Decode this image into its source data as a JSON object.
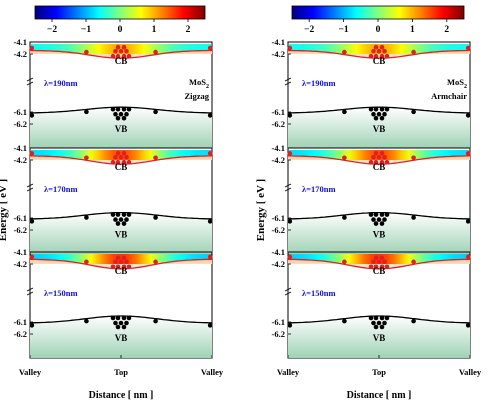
{
  "colors": {
    "cb_curve": "#e02020",
    "vb_curve": "#000000",
    "cb_dots": "#e02020",
    "vb_dots": "#000000",
    "cb_fill_top": "#f2c79a",
    "cb_fill_bottom": "#fff6e8",
    "vb_fill_top": "#ffffff",
    "vb_fill_bottom": "#9fd2b5",
    "lambda_text": "#1010e0",
    "colormap": "jet"
  },
  "chart_data": [
    {
      "type": "line",
      "name_label": "MoS₂ Zigzag",
      "note_lines": [
        "MoS",
        "2",
        "Zigzag"
      ],
      "xlabel": "Distance [ nm ]",
      "ylabel": "Energy [ eV ]",
      "x_tick_labels": [
        "Valley",
        "Top",
        "Valley"
      ],
      "colorbar": {
        "ticks": [
          -2,
          -1,
          0,
          1,
          2
        ],
        "range": [
          -2.5,
          2.5
        ],
        "colormap": "jet"
      },
      "panels": [
        {
          "lambda": "λ=190nm",
          "cb_label": "CB",
          "vb_label": "VB",
          "strip_center": 0.0,
          "strip_amplitude": 1.6,
          "cb_curve": {
            "edge": -4.17,
            "dip": -4.235
          },
          "vb_curve": {
            "edge": -6.11,
            "peak": -6.06
          },
          "yticks": [
            "-4.1",
            "-4.2",
            "-6.1",
            "-6.2"
          ]
        },
        {
          "lambda": "λ=170nm",
          "cb_label": "CB",
          "vb_label": "VB",
          "strip_center": 0.0,
          "strip_amplitude": 2.3,
          "cb_curve": {
            "edge": -4.165,
            "dip": -4.235
          },
          "vb_curve": {
            "edge": -6.11,
            "peak": -6.055
          },
          "yticks": [
            "-4.1",
            "-4.2",
            "-6.1",
            "-6.2"
          ]
        },
        {
          "lambda": "λ=150nm",
          "cb_label": "CB",
          "vb_label": "VB",
          "strip_center": 0.0,
          "strip_amplitude": 2.5,
          "cb_curve": {
            "edge": -4.16,
            "dip": -4.24
          },
          "vb_curve": {
            "edge": -6.11,
            "peak": -6.05
          },
          "yticks": [
            "-4.1",
            "-4.2",
            "-6.1",
            "-6.2"
          ]
        }
      ]
    },
    {
      "type": "line",
      "name_label": "MoS₂ Armchair",
      "note_lines": [
        "MoS",
        "2",
        "Armchair"
      ],
      "xlabel": "Distance [ nm ]",
      "ylabel": "Energy [ eV ]",
      "x_tick_labels": [
        "Valley",
        "Top",
        "Valley"
      ],
      "colorbar": {
        "ticks": [
          -2,
          -1,
          0,
          1,
          2
        ],
        "range": [
          -2.5,
          2.5
        ],
        "colormap": "jet"
      },
      "panels": [
        {
          "lambda": "λ=190nm",
          "cb_label": "CB",
          "vb_label": "VB",
          "strip_center": 0.0,
          "strip_amplitude": 1.6,
          "cb_curve": {
            "edge": -4.17,
            "dip": -4.235
          },
          "vb_curve": {
            "edge": -6.11,
            "peak": -6.06
          },
          "yticks": [
            "-4.1",
            "-4.2",
            "-6.1",
            "-6.2"
          ]
        },
        {
          "lambda": "λ=170nm",
          "cb_label": "CB",
          "vb_label": "VB",
          "strip_center": 0.0,
          "strip_amplitude": 2.3,
          "cb_curve": {
            "edge": -4.165,
            "dip": -4.235
          },
          "vb_curve": {
            "edge": -6.11,
            "peak": -6.055
          },
          "yticks": [
            "-4.1",
            "-4.2",
            "-6.1",
            "-6.2"
          ]
        },
        {
          "lambda": "λ=150nm",
          "cb_label": "CB",
          "vb_label": "VB",
          "strip_center": 0.0,
          "strip_amplitude": 2.5,
          "cb_curve": {
            "edge": -4.16,
            "dip": -4.24
          },
          "vb_curve": {
            "edge": -6.11,
            "peak": -6.05
          },
          "yticks": [
            "-4.1",
            "-4.2",
            "-6.1",
            "-6.2"
          ]
        }
      ]
    }
  ]
}
